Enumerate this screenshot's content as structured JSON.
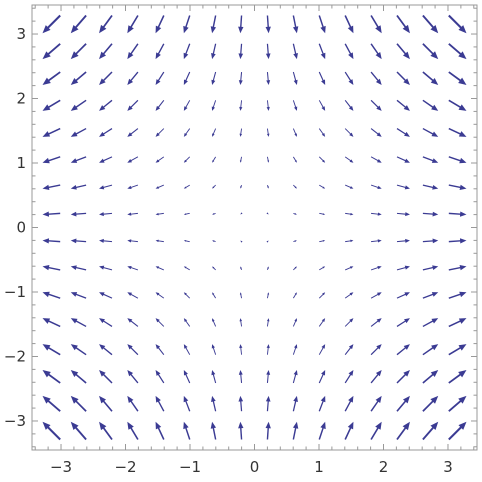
{
  "chart_data": {
    "type": "vector_field",
    "title": "",
    "xlabel": "",
    "ylabel": "",
    "field": {
      "u": "x",
      "v": "-y"
    },
    "xlim": [
      -3.45,
      3.45
    ],
    "ylim": [
      -3.45,
      3.45
    ],
    "grid": false,
    "legend": "none",
    "arrow_color": "#3b3b93",
    "sample_points": {
      "x": [
        -3.15,
        -2.73,
        -2.31,
        -1.89,
        -1.47,
        -1.05,
        -0.63,
        -0.21,
        0.21,
        0.63,
        1.05,
        1.47,
        1.89,
        2.31,
        2.73,
        3.15
      ],
      "y": [
        -3.15,
        -2.73,
        -2.31,
        -1.89,
        -1.47,
        -1.05,
        -0.63,
        -0.21,
        0.21,
        0.63,
        1.05,
        1.47,
        1.89,
        2.31,
        2.73,
        3.15
      ]
    },
    "x_ticks": [
      {
        "value": -3,
        "label": "−3"
      },
      {
        "value": -2,
        "label": "−2"
      },
      {
        "value": -1,
        "label": "−1"
      },
      {
        "value": 0,
        "label": "0"
      },
      {
        "value": 1,
        "label": "1"
      },
      {
        "value": 2,
        "label": "2"
      },
      {
        "value": 3,
        "label": "3"
      }
    ],
    "y_ticks": [
      {
        "value": -3,
        "label": "−3"
      },
      {
        "value": -2,
        "label": "−2"
      },
      {
        "value": -1,
        "label": "−1"
      },
      {
        "value": 0,
        "label": "0"
      },
      {
        "value": 1,
        "label": "1"
      },
      {
        "value": 2,
        "label": "2"
      },
      {
        "value": 3,
        "label": "3"
      }
    ]
  }
}
